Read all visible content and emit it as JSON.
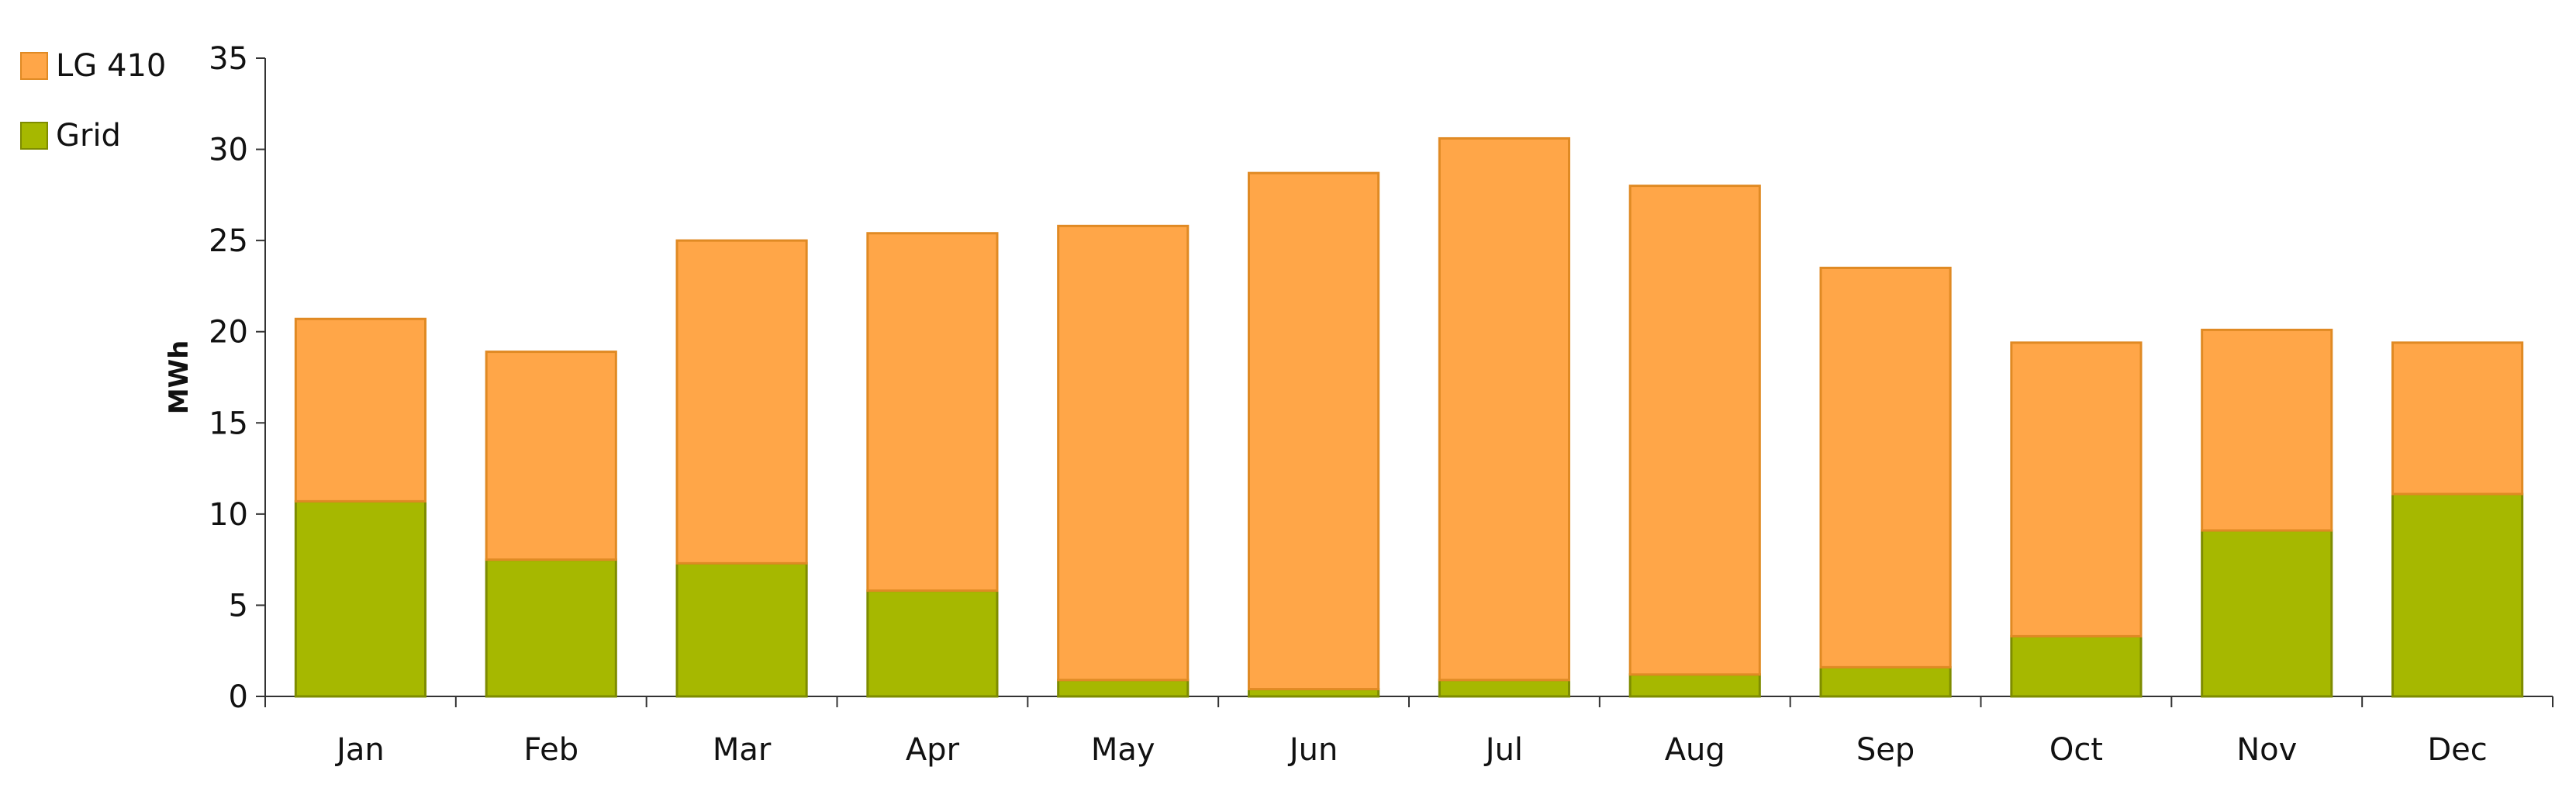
{
  "chart_data": {
    "type": "bar",
    "stacked": true,
    "categories": [
      "Jan",
      "Feb",
      "Mar",
      "Apr",
      "May",
      "Jun",
      "Jul",
      "Aug",
      "Sep",
      "Oct",
      "Nov",
      "Dec"
    ],
    "series": [
      {
        "name": "Grid",
        "color": "#a6b800",
        "values": [
          10.7,
          7.5,
          7.3,
          5.8,
          0.9,
          0.4,
          0.9,
          1.2,
          1.6,
          3.3,
          9.1,
          11.1
        ]
      },
      {
        "name": "LG 410",
        "color": "#ffa648",
        "values": [
          10.0,
          11.4,
          17.7,
          19.6,
          24.9,
          28.3,
          29.7,
          26.8,
          21.9,
          16.1,
          11.0,
          8.3
        ]
      }
    ],
    "legend": {
      "position": "top-left",
      "entries": [
        {
          "name": "LG 410",
          "color": "#ffa648",
          "border": "#e08a24"
        },
        {
          "name": "Grid",
          "color": "#a6b800",
          "border": "#7e8c00"
        }
      ]
    },
    "xlabel": "",
    "ylabel": "MWh",
    "ylim": [
      0,
      35
    ],
    "yticks": [
      0,
      5,
      10,
      15,
      20,
      25,
      30,
      35
    ],
    "grid": false
  }
}
